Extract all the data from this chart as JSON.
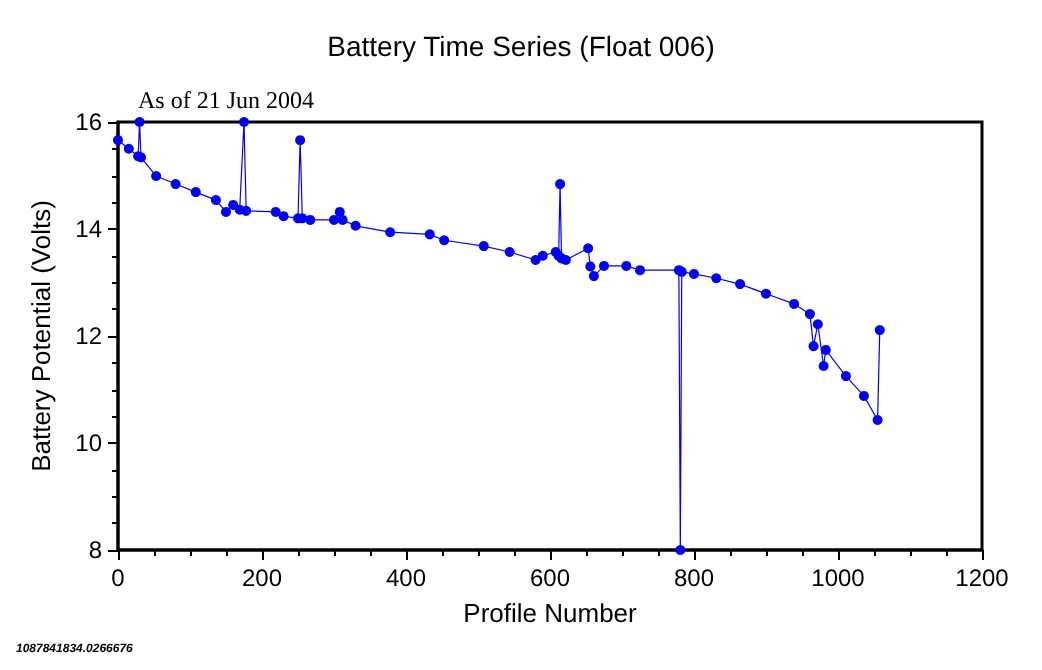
{
  "chart_data": {
    "type": "line",
    "title": "Battery Time Series (Float 006)",
    "subtitle": "As of 21 Jun 2004",
    "xlabel": "Profile Number",
    "ylabel": "Battery Potential (Volts)",
    "annotations": [
      "1087841834.0266676"
    ],
    "xlim": [
      0,
      1200
    ],
    "xticks": [
      0,
      200,
      400,
      600,
      800,
      1000,
      1200
    ],
    "ylim": [
      8,
      16
    ],
    "yticks": [
      8,
      10,
      12,
      14,
      16
    ],
    "grid": false,
    "marker": "circle",
    "line_style": "solid",
    "series": [
      {
        "color": "#0000ff",
        "x": [
          0,
          15,
          28,
          30,
          32,
          53,
          80,
          108,
          136,
          150,
          160,
          169,
          175,
          178,
          219,
          230,
          250,
          253,
          256,
          267,
          300,
          308,
          312,
          330,
          378,
          433,
          453,
          508,
          544,
          580,
          590,
          608,
          612,
          614,
          616,
          622,
          653,
          656,
          661,
          675,
          706,
          725,
          779,
          781,
          783,
          800,
          831,
          864,
          900,
          939,
          961,
          966,
          972,
          980,
          983,
          1011,
          1036,
          1055,
          1058
        ],
        "values": [
          15.66,
          15.5,
          15.36,
          16,
          15.34,
          14.99,
          14.84,
          14.69,
          14.54,
          14.32,
          14.45,
          14.36,
          16,
          14.34,
          14.32,
          14.24,
          14.2,
          15.66,
          14.2,
          14.17,
          14.17,
          14.32,
          14.17,
          14.06,
          13.94,
          13.9,
          13.79,
          13.68,
          13.57,
          13.42,
          13.5,
          13.57,
          13.5,
          14.84,
          13.45,
          13.42,
          13.64,
          13.3,
          13.12,
          13.31,
          13.31,
          13.23,
          13.23,
          8,
          13.2,
          13.16,
          13.08,
          12.97,
          12.79,
          12.6,
          12.41,
          11.81,
          12.22,
          11.44,
          11.74,
          11.25,
          10.88,
          10.43,
          12.11
        ]
      }
    ]
  }
}
